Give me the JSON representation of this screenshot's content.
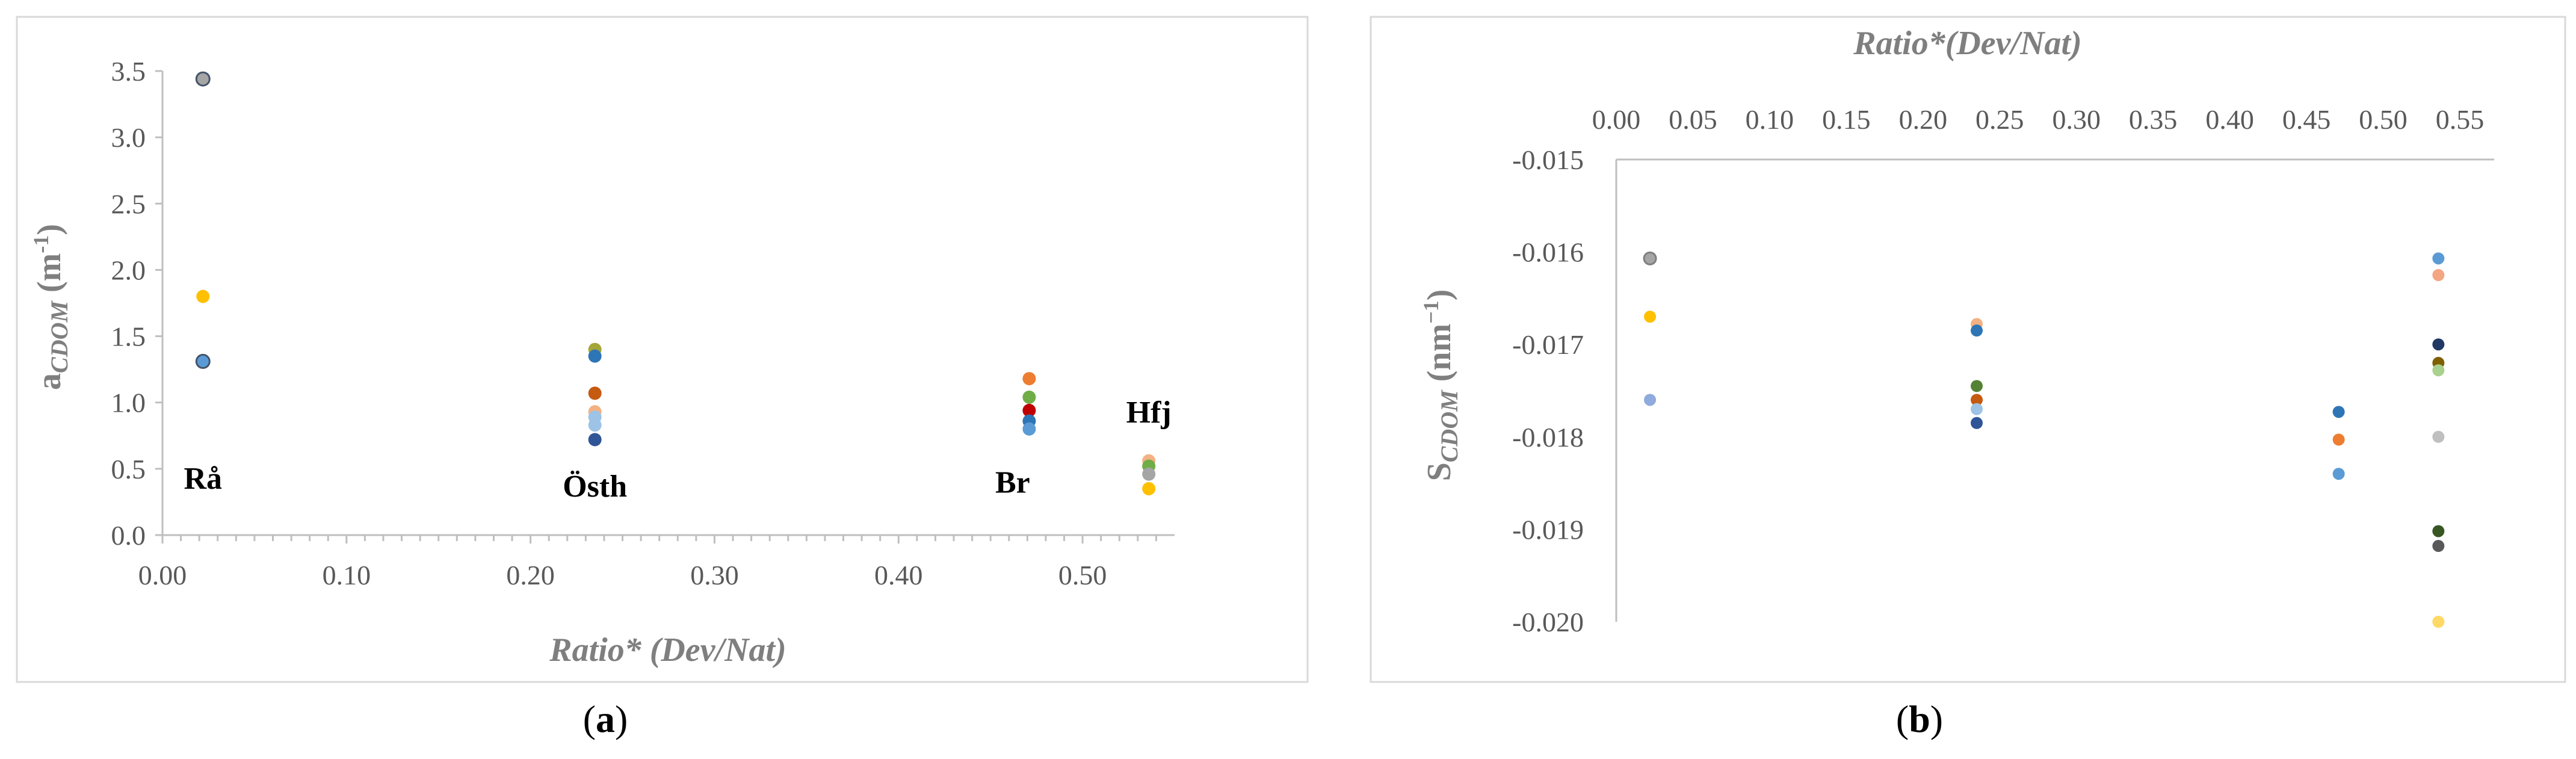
{
  "captions": {
    "a_paren_open": "(",
    "a_letter": "a",
    "a_paren_close": ")",
    "b_paren_open": "(",
    "b_letter": "b",
    "b_paren_close": ")"
  },
  "chart_data": [
    {
      "type": "scatter",
      "panel": "a",
      "xlabel": "Ratio* (Dev/Nat)",
      "ylabel_main": "a",
      "ylabel_sub": "CDOM",
      "ylabel_unit_pre": " (m",
      "ylabel_unit_sup": "-1",
      "ylabel_unit_post": ")",
      "xlim": [
        0,
        0.55
      ],
      "ylim": [
        0,
        3.5
      ],
      "x_ticks": [
        0,
        0.1,
        0.2,
        0.3,
        0.4,
        0.5
      ],
      "x_tick_labels": [
        "0.00",
        "0.10",
        "0.20",
        "0.30",
        "0.40",
        "0.50"
      ],
      "y_ticks": [
        0,
        0.5,
        1,
        1.5,
        2,
        2.5,
        3,
        3.5
      ],
      "y_tick_labels": [
        "0.0",
        "0.5",
        "1.0",
        "1.5",
        "2.0",
        "2.5",
        "3.0",
        "3.5"
      ],
      "x_axis_position": "bottom",
      "grid": false,
      "annotations": [
        {
          "text": "Rå",
          "x": 0.022,
          "y": 0.35
        },
        {
          "text": "Östh",
          "x": 0.235,
          "y": 0.29
        },
        {
          "text": "Br",
          "x": 0.462,
          "y": 0.32
        },
        {
          "text": "Hfj",
          "x": 0.536,
          "y": 0.85
        }
      ],
      "points": [
        {
          "x": 0.022,
          "y": 3.44,
          "color": "#a5a5a5",
          "outline": true
        },
        {
          "x": 0.022,
          "y": 1.8,
          "color": "#ffc000",
          "outline": false
        },
        {
          "x": 0.022,
          "y": 1.31,
          "color": "#5b9bd5",
          "outline": true
        },
        {
          "x": 0.235,
          "y": 1.4,
          "color": "#a5a53a",
          "outline": false
        },
        {
          "x": 0.235,
          "y": 1.35,
          "color": "#2e75b6",
          "outline": false
        },
        {
          "x": 0.235,
          "y": 1.07,
          "color": "#c55a11",
          "outline": false
        },
        {
          "x": 0.235,
          "y": 0.93,
          "color": "#f4b183",
          "outline": false
        },
        {
          "x": 0.235,
          "y": 0.89,
          "color": "#9dc3e6",
          "outline": false
        },
        {
          "x": 0.235,
          "y": 0.83,
          "color": "#9dc3e6",
          "outline": false
        },
        {
          "x": 0.235,
          "y": 0.72,
          "color": "#2f5597",
          "outline": false
        },
        {
          "x": 0.471,
          "y": 1.18,
          "color": "#ed7d31",
          "outline": false
        },
        {
          "x": 0.471,
          "y": 1.04,
          "color": "#70ad47",
          "outline": false
        },
        {
          "x": 0.471,
          "y": 0.94,
          "color": "#c00000",
          "outline": false
        },
        {
          "x": 0.471,
          "y": 0.86,
          "color": "#2e75b6",
          "outline": false
        },
        {
          "x": 0.471,
          "y": 0.8,
          "color": "#5b9bd5",
          "outline": false
        },
        {
          "x": 0.536,
          "y": 0.56,
          "color": "#f4b183",
          "outline": false
        },
        {
          "x": 0.536,
          "y": 0.52,
          "color": "#70ad47",
          "outline": false
        },
        {
          "x": 0.536,
          "y": 0.46,
          "color": "#a5a5a5",
          "outline": false
        },
        {
          "x": 0.536,
          "y": 0.35,
          "color": "#ffc000",
          "outline": false
        }
      ]
    },
    {
      "type": "scatter",
      "panel": "b",
      "xlabel": "Ratio*(Dev/Nat)",
      "ylabel_main": "S",
      "ylabel_sub": "CDOM",
      "ylabel_unit_pre": " (nm",
      "ylabel_unit_sup": "−1",
      "ylabel_unit_post": ")",
      "xlim": [
        0,
        0.55
      ],
      "ylim": [
        -0.02,
        -0.015
      ],
      "x_ticks": [
        0,
        0.05,
        0.1,
        0.15,
        0.2,
        0.25,
        0.3,
        0.35,
        0.4,
        0.45,
        0.5,
        0.55
      ],
      "x_tick_labels": [
        "0.00",
        "0.05",
        "0.10",
        "0.15",
        "0.20",
        "0.25",
        "0.30",
        "0.35",
        "0.40",
        "0.45",
        "0.50",
        "0.55"
      ],
      "y_ticks": [
        -0.015,
        -0.016,
        -0.017,
        -0.018,
        -0.019,
        -0.02
      ],
      "y_tick_labels": [
        "-0.015",
        "-0.016",
        "-0.017",
        "-0.018",
        "-0.019",
        "-0.020"
      ],
      "x_axis_position": "top",
      "grid": false,
      "points": [
        {
          "x": 0.022,
          "y": -0.01607,
          "color": "#a5a5a5",
          "outline": true
        },
        {
          "x": 0.022,
          "y": -0.0167,
          "color": "#ffc000",
          "outline": false
        },
        {
          "x": 0.022,
          "y": -0.0176,
          "color": "#8faadc",
          "outline": false
        },
        {
          "x": 0.235,
          "y": -0.01678,
          "color": "#f4b183",
          "outline": false
        },
        {
          "x": 0.235,
          "y": -0.01685,
          "color": "#2e75b6",
          "outline": false
        },
        {
          "x": 0.235,
          "y": -0.01745,
          "color": "#548235",
          "outline": false
        },
        {
          "x": 0.235,
          "y": -0.0176,
          "color": "#c55a11",
          "outline": false
        },
        {
          "x": 0.235,
          "y": -0.0177,
          "color": "#9dc3e6",
          "outline": false
        },
        {
          "x": 0.235,
          "y": -0.01785,
          "color": "#2f5597",
          "outline": false
        },
        {
          "x": 0.471,
          "y": -0.01773,
          "color": "#2e75b6",
          "outline": false
        },
        {
          "x": 0.471,
          "y": -0.01803,
          "color": "#ed7d31",
          "outline": false
        },
        {
          "x": 0.471,
          "y": -0.0184,
          "color": "#5b9bd5",
          "outline": false
        },
        {
          "x": 0.536,
          "y": -0.01607,
          "color": "#5b9bd5",
          "outline": false
        },
        {
          "x": 0.536,
          "y": -0.01625,
          "color": "#f4a582",
          "outline": false
        },
        {
          "x": 0.536,
          "y": -0.017,
          "color": "#203864",
          "outline": false
        },
        {
          "x": 0.536,
          "y": -0.0172,
          "color": "#7f6000",
          "outline": false
        },
        {
          "x": 0.536,
          "y": -0.01728,
          "color": "#a9d18e",
          "outline": false
        },
        {
          "x": 0.536,
          "y": -0.018,
          "color": "#bfbfbf",
          "outline": false
        },
        {
          "x": 0.536,
          "y": -0.01902,
          "color": "#375623",
          "outline": false
        },
        {
          "x": 0.536,
          "y": -0.01918,
          "color": "#595959",
          "outline": false
        },
        {
          "x": 0.536,
          "y": -0.02,
          "color": "#ffd966",
          "outline": false
        }
      ]
    }
  ]
}
